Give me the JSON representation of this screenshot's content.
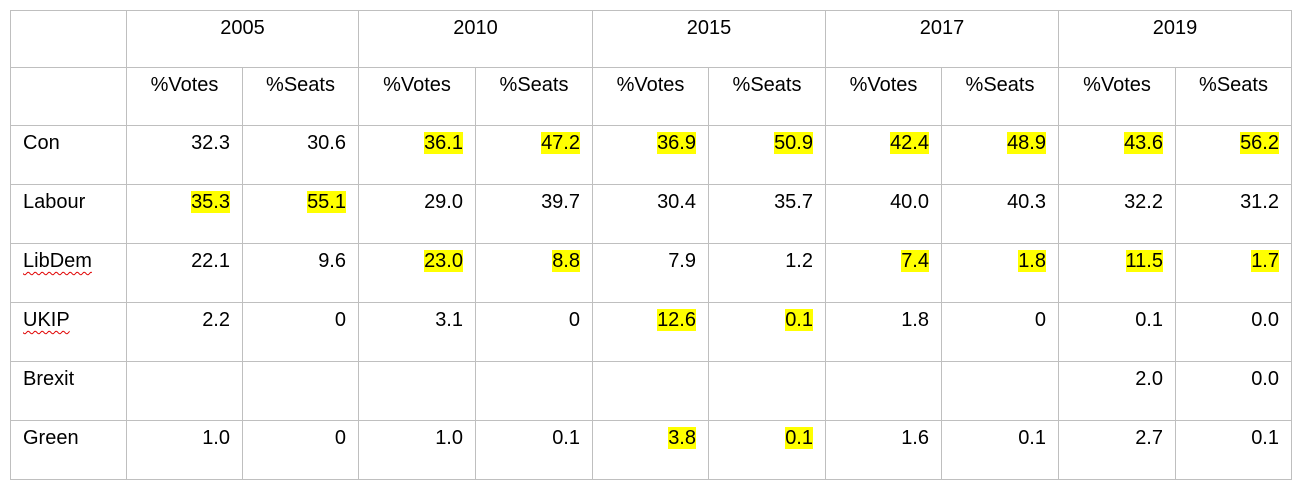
{
  "table": {
    "highlight_color": "#ffff00",
    "years": [
      {
        "label": "2005",
        "columns": [
          "%Votes",
          "%Seats"
        ]
      },
      {
        "label": "2010",
        "columns": [
          "%Votes",
          "%Seats"
        ]
      },
      {
        "label": "2015",
        "columns": [
          "%Votes",
          "%Seats"
        ]
      },
      {
        "label": "2017",
        "columns": [
          "%Votes",
          "%Seats"
        ]
      },
      {
        "label": "2019",
        "columns": [
          "%Votes",
          "%Seats"
        ]
      }
    ],
    "rows": [
      {
        "party": "Con",
        "cells": [
          "32.3",
          "30.6",
          "36.1",
          "47.2",
          "36.9",
          "50.9",
          "42.4",
          "48.9",
          "43.6",
          "56.2"
        ],
        "highlighted": [
          2,
          3,
          4,
          5,
          6,
          7,
          8,
          9
        ]
      },
      {
        "party": "Labour",
        "cells": [
          "35.3",
          "55.1",
          "29.0",
          "39.7",
          "30.4",
          "35.7",
          "40.0",
          "40.3",
          "32.2",
          "31.2"
        ],
        "highlighted": [
          0,
          1
        ]
      },
      {
        "party": "LibDem",
        "spellcheck_flagged": true,
        "cells": [
          "22.1",
          "9.6",
          "23.0",
          "8.8",
          "7.9",
          "1.2",
          "7.4",
          "1.8",
          "11.5",
          "1.7"
        ],
        "highlighted": [
          2,
          3,
          6,
          7,
          8,
          9
        ]
      },
      {
        "party": "UKIP",
        "spellcheck_flagged": true,
        "cells": [
          "2.2",
          "0",
          "3.1",
          "0",
          "12.6",
          "0.1",
          "1.8",
          "0",
          "0.1",
          "0.0"
        ],
        "highlighted": [
          4,
          5
        ]
      },
      {
        "party": "Brexit",
        "cells": [
          null,
          null,
          null,
          null,
          null,
          null,
          null,
          null,
          "2.0",
          "0.0"
        ],
        "highlighted": []
      },
      {
        "party": "Green",
        "cells": [
          "1.0",
          "0",
          "1.0",
          "0.1",
          "3.8",
          "0.1",
          "1.6",
          "0.1",
          "2.7",
          "0.1"
        ],
        "highlighted": [
          4,
          5
        ]
      }
    ]
  }
}
